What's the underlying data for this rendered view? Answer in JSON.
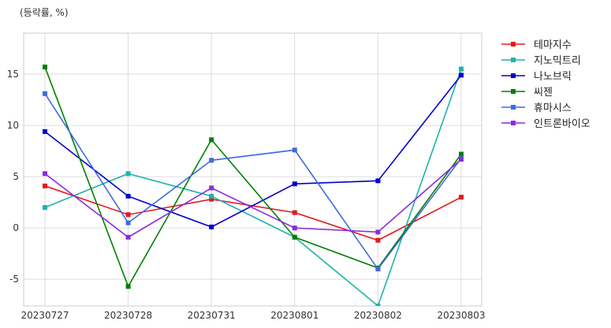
{
  "chart_data": {
    "type": "line",
    "title": "",
    "unit_label": "(등락률, %)",
    "xlabel": "",
    "ylabel": "",
    "categories": [
      "20230727",
      "20230728",
      "20230731",
      "20230801",
      "20230802",
      "20230803"
    ],
    "ylim": [
      -7.6,
      19.0
    ],
    "yticks": [
      "15",
      "10",
      "5",
      "0",
      "-5"
    ],
    "ytick_values": [
      15,
      10,
      5,
      0,
      -5
    ],
    "grid": true,
    "legend_position": "right",
    "series": [
      {
        "name": "테마지수",
        "color": "#e31a1c",
        "values": [
          4.1,
          1.3,
          2.8,
          1.5,
          -1.2,
          3.0
        ]
      },
      {
        "name": "지노믹트리",
        "color": "#20b2aa",
        "values": [
          2.0,
          5.3,
          3.1,
          -0.9,
          -7.6,
          15.5
        ]
      },
      {
        "name": "나노브릭",
        "color": "#0000cd",
        "values": [
          9.4,
          3.1,
          0.1,
          4.3,
          4.6,
          14.9
        ]
      },
      {
        "name": "씨젠",
        "color": "#008000",
        "values": [
          15.7,
          -5.7,
          8.6,
          -0.9,
          -3.9,
          7.2
        ]
      },
      {
        "name": "휴마시스",
        "color": "#4169e1",
        "values": [
          13.1,
          0.5,
          6.6,
          7.6,
          -4.0,
          6.8
        ]
      },
      {
        "name": "인트론바이오",
        "color": "#8a2be2",
        "values": [
          5.3,
          -0.9,
          3.9,
          0.0,
          -0.4,
          6.7
        ]
      }
    ]
  }
}
